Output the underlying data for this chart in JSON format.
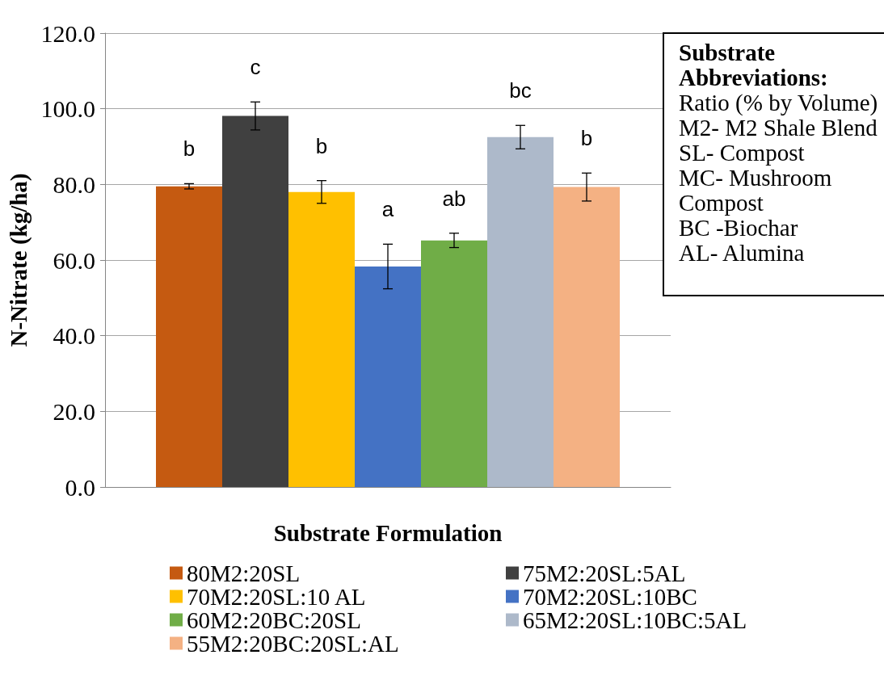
{
  "chart_data": {
    "type": "bar",
    "xlabel": "Substrate Formulation",
    "ylabel": "N-Nitrate (kg/ha)",
    "categories": [
      null
    ],
    "series": [
      {
        "name": "80M2:20SL",
        "color": "#c55a11",
        "values": [
          79.5
        ],
        "errors": [
          0.7
        ],
        "value_labels": [
          "b"
        ]
      },
      {
        "name": "75M2:20SL:5AL",
        "color": "#404040",
        "values": [
          98.1
        ],
        "errors": [
          3.7
        ],
        "value_labels": [
          "c"
        ]
      },
      {
        "name": "70M2:20SL:10 AL",
        "color": "#ffc000",
        "values": [
          78.0
        ],
        "errors": [
          3.0
        ],
        "value_labels": [
          "b"
        ]
      },
      {
        "name": "70M2:20SL:10BC",
        "color": "#4472c4",
        "values": [
          58.3
        ],
        "errors": [
          5.9
        ],
        "value_labels": [
          "a"
        ]
      },
      {
        "name": "60M2:20BC:20SL",
        "color": "#70ad47",
        "values": [
          65.2
        ],
        "errors": [
          1.9
        ],
        "value_labels": [
          "ab"
        ]
      },
      {
        "name": "65M2:20SL:10BC:5AL",
        "color": "#adb9ca",
        "values": [
          92.5
        ],
        "errors": [
          3.1
        ],
        "value_labels": [
          "bc"
        ]
      },
      {
        "name": "55M2:20BC:20SL:AL",
        "color": "#f4b183",
        "values": [
          79.3
        ],
        "errors": [
          3.7
        ],
        "value_labels": [
          "b"
        ]
      }
    ],
    "ylim": [
      0,
      120
    ],
    "yticks": [
      {
        "value": 0,
        "label": "0.0"
      },
      {
        "value": 20,
        "label": "20.0"
      },
      {
        "value": 40,
        "label": "40.0"
      },
      {
        "value": 60,
        "label": "60.0"
      },
      {
        "value": 80,
        "label": "80.0"
      },
      {
        "value": 100,
        "label": "100.0"
      },
      {
        "value": 120,
        "label": "120.0"
      }
    ],
    "grid": "y",
    "legend": "bottom",
    "annotations": [
      "Substrate Abbreviations:",
      "Ratio (% by Volume)",
      "M2- M2 Shale Blend",
      "SL- Compost",
      "MC- Mushroom Compost",
      "BC -Biochar",
      "AL- Alumina"
    ]
  }
}
